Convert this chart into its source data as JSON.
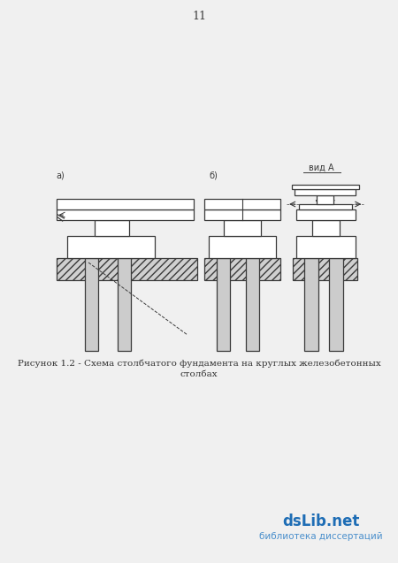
{
  "page_number": "11",
  "caption_line1": "Рисунок 1.2 - Схема столбчатого фундамента на круглых железобетонных",
  "caption_line2": "столбах",
  "watermark_line1": "dsLib.net",
  "watermark_line2": "библиотека диссертаций",
  "bg_color": "#f0f0f0",
  "line_color": "#3a3a3a",
  "fill_pile": "#cccccc",
  "fill_ground": "#d0d0d0",
  "label_a": "а)",
  "label_b": "б)",
  "label_vid": "вид А"
}
